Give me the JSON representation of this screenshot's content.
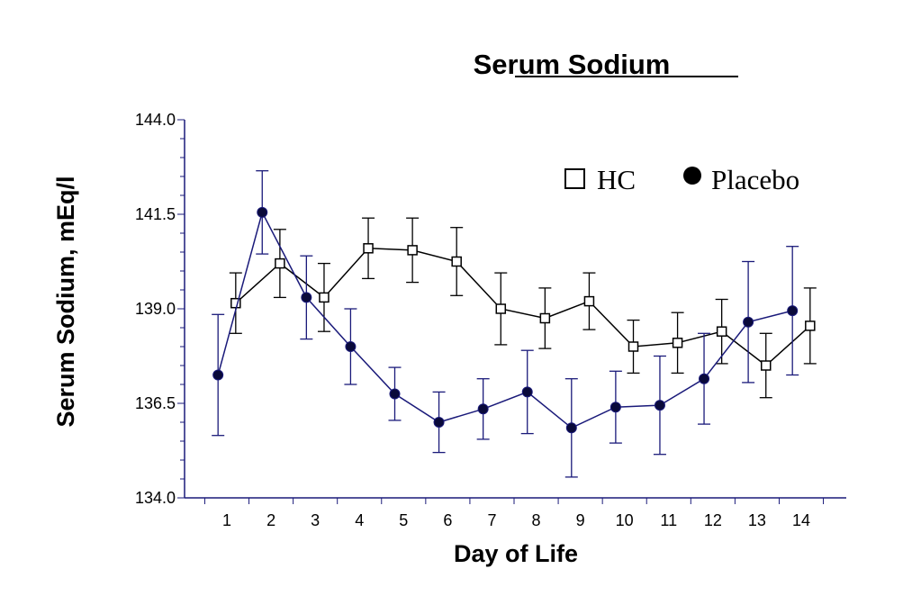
{
  "chart_data": {
    "type": "line",
    "title": "Serum Sodium",
    "xlabel": "Day of Life",
    "ylabel": "Serum Sodium, mEq/l",
    "x_ticks": [
      "1",
      "2",
      "3",
      "4",
      "5",
      "6",
      "7",
      "8",
      "9",
      "10",
      "11",
      "12",
      "13",
      "14"
    ],
    "y_ticks": [
      "134.0",
      "136.5",
      "139.0",
      "141.5",
      "144.0"
    ],
    "ylim": [
      134.0,
      144.0
    ],
    "xlim": [
      0,
      15
    ],
    "grid": false,
    "legend_position": "top-right",
    "series": [
      {
        "name": "HC",
        "marker": "open-square",
        "color": "#000000",
        "x": [
          1.2,
          2.2,
          3.2,
          4.2,
          5.2,
          6.2,
          7.2,
          8.2,
          9.2,
          10.2,
          11.2,
          12.2,
          13.2,
          14.2
        ],
        "y": [
          139.15,
          140.2,
          139.3,
          140.6,
          140.55,
          140.25,
          139.0,
          138.75,
          139.2,
          138.0,
          138.1,
          138.4,
          137.5,
          138.55
        ],
        "err": [
          0.8,
          0.9,
          0.9,
          0.8,
          0.85,
          0.9,
          0.95,
          0.8,
          0.75,
          0.7,
          0.8,
          0.85,
          0.85,
          1.0
        ]
      },
      {
        "name": "Placebo",
        "marker": "filled-circle",
        "color": "#1a1a7a",
        "x": [
          0.8,
          1.8,
          2.8,
          3.8,
          4.8,
          5.8,
          6.8,
          7.8,
          8.8,
          9.8,
          10.8,
          11.8,
          12.8,
          13.8
        ],
        "y": [
          137.25,
          141.55,
          139.3,
          138.0,
          136.75,
          136.0,
          136.35,
          136.8,
          135.85,
          136.4,
          136.45,
          137.15,
          138.65,
          138.95
        ],
        "err": [
          1.6,
          1.1,
          1.1,
          1.0,
          0.7,
          0.8,
          0.8,
          1.1,
          1.3,
          0.95,
          1.3,
          1.2,
          1.6,
          1.7
        ]
      }
    ]
  },
  "legend": {
    "hc_label": "HC",
    "placebo_label": "Placebo"
  }
}
